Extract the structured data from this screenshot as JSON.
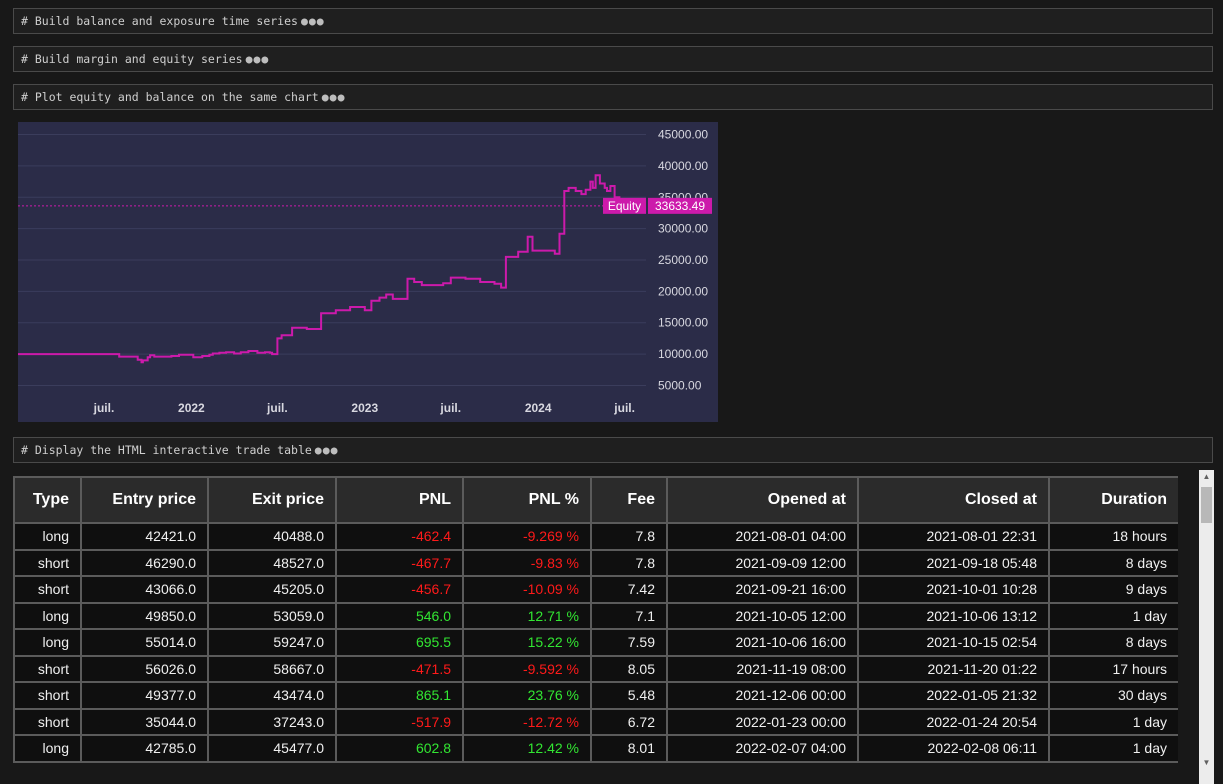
{
  "cells": [
    {
      "code": "# Build balance and exposure time series"
    },
    {
      "code": "# Build margin and equity series"
    },
    {
      "code": "# Plot equity and balance on the same chart"
    },
    {
      "code": "# Display the HTML interactive trade table"
    }
  ],
  "ellipsis": "●●●",
  "colors": {
    "chart_bg": "#2b2c48",
    "equity_line": "#cc1aab",
    "pnl_negative": "#ff1a1a",
    "pnl_positive": "#32e632"
  },
  "chart_data": {
    "type": "line",
    "title": "",
    "x_tick_labels": [
      "juil.",
      "2022",
      "juil.",
      "2023",
      "juil.",
      "2024",
      "juil."
    ],
    "x_ticks": [
      "2021-07-01",
      "2022-01-01",
      "2022-07-01",
      "2023-01-01",
      "2023-07-01",
      "2024-01-01",
      "2024-07-01"
    ],
    "xlim": [
      "2021-01-01",
      "2024-08-15"
    ],
    "y_tick_labels": [
      "5000.00",
      "10000.00",
      "15000.00",
      "20000.00",
      "25000.00",
      "30000.00",
      "35000.00",
      "40000.00",
      "45000.00"
    ],
    "ylim": [
      3000,
      47000
    ],
    "grid": true,
    "series": [
      {
        "name": "Equity",
        "last_value_label": "33633.49",
        "x": [
          "2021-01-01",
          "2021-08-01",
          "2021-08-02",
          "2021-09-10",
          "2021-09-18",
          "2021-09-21",
          "2021-10-01",
          "2021-10-06",
          "2021-10-15",
          "2021-11-20",
          "2021-12-06",
          "2022-01-05",
          "2022-01-24",
          "2022-02-08",
          "2022-02-15",
          "2022-03-01",
          "2022-03-15",
          "2022-04-01",
          "2022-04-15",
          "2022-05-01",
          "2022-05-20",
          "2022-06-05",
          "2022-06-15",
          "2022-06-20",
          "2022-07-01",
          "2022-07-10",
          "2022-08-01",
          "2022-08-20",
          "2022-09-01",
          "2022-10-01",
          "2022-11-01",
          "2022-12-01",
          "2023-01-01",
          "2023-01-15",
          "2023-02-01",
          "2023-02-15",
          "2023-03-01",
          "2023-04-01",
          "2023-04-15",
          "2023-05-01",
          "2023-05-15",
          "2023-06-01",
          "2023-06-15",
          "2023-07-01",
          "2023-08-01",
          "2023-09-01",
          "2023-10-01",
          "2023-10-15",
          "2023-10-25",
          "2023-11-01",
          "2023-11-20",
          "2023-12-10",
          "2023-12-20",
          "2024-01-01",
          "2024-01-25",
          "2024-02-05",
          "2024-02-15",
          "2024-02-25",
          "2024-03-05",
          "2024-03-20",
          "2024-04-01",
          "2024-04-10",
          "2024-04-20",
          "2024-04-25",
          "2024-05-01",
          "2024-05-10",
          "2024-05-20",
          "2024-05-25",
          "2024-06-01",
          "2024-06-10",
          "2024-06-20",
          "2024-06-25",
          "2024-07-01"
        ],
        "y": [
          10000,
          10000,
          9600,
          9100,
          8700,
          9000,
          9500,
          9800,
          9600,
          9700,
          9900,
          9500,
          9700,
          9900,
          10100,
          10200,
          10300,
          10100,
          10300,
          10500,
          10200,
          10300,
          10200,
          10000,
          12500,
          13000,
          14200,
          14200,
          14000,
          16500,
          17000,
          17500,
          17000,
          18500,
          19000,
          19500,
          18800,
          22000,
          21500,
          21000,
          21000,
          21000,
          21300,
          22200,
          22000,
          21500,
          21200,
          20600,
          25500,
          25500,
          26300,
          28700,
          26500,
          26500,
          26500,
          26000,
          29200,
          36000,
          36500,
          36000,
          35500,
          36200,
          37500,
          36500,
          38500,
          37200,
          36500,
          36000,
          36800,
          35000,
          34500,
          34000,
          33633
        ]
      }
    ],
    "axis_labels": [
      {
        "name": "Equity",
        "value": "33633.49"
      }
    ]
  },
  "table": {
    "headers": [
      "Type",
      "Entry price",
      "Exit price",
      "PNL",
      "PNL %",
      "Fee",
      "Opened at",
      "Closed at",
      "Duration"
    ],
    "rows": [
      {
        "type": "long",
        "entry": "42421.0",
        "exit": "40488.0",
        "pnl": "-462.4",
        "pnl_pct": "-9.269 %",
        "fee": "7.8",
        "opened": "2021-08-01 04:00",
        "closed": "2021-08-01 22:31",
        "duration": "18 hours",
        "positive": false
      },
      {
        "type": "short",
        "entry": "46290.0",
        "exit": "48527.0",
        "pnl": "-467.7",
        "pnl_pct": "-9.83 %",
        "fee": "7.8",
        "opened": "2021-09-09 12:00",
        "closed": "2021-09-18 05:48",
        "duration": "8 days",
        "positive": false
      },
      {
        "type": "short",
        "entry": "43066.0",
        "exit": "45205.0",
        "pnl": "-456.7",
        "pnl_pct": "-10.09 %",
        "fee": "7.42",
        "opened": "2021-09-21 16:00",
        "closed": "2021-10-01 10:28",
        "duration": "9 days",
        "positive": false
      },
      {
        "type": "long",
        "entry": "49850.0",
        "exit": "53059.0",
        "pnl": "546.0",
        "pnl_pct": "12.71 %",
        "fee": "7.1",
        "opened": "2021-10-05 12:00",
        "closed": "2021-10-06 13:12",
        "duration": "1 day",
        "positive": true
      },
      {
        "type": "long",
        "entry": "55014.0",
        "exit": "59247.0",
        "pnl": "695.5",
        "pnl_pct": "15.22 %",
        "fee": "7.59",
        "opened": "2021-10-06 16:00",
        "closed": "2021-10-15 02:54",
        "duration": "8 days",
        "positive": true
      },
      {
        "type": "short",
        "entry": "56026.0",
        "exit": "58667.0",
        "pnl": "-471.5",
        "pnl_pct": "-9.592 %",
        "fee": "8.05",
        "opened": "2021-11-19 08:00",
        "closed": "2021-11-20 01:22",
        "duration": "17 hours",
        "positive": false
      },
      {
        "type": "short",
        "entry": "49377.0",
        "exit": "43474.0",
        "pnl": "865.1",
        "pnl_pct": "23.76 %",
        "fee": "5.48",
        "opened": "2021-12-06 00:00",
        "closed": "2022-01-05 21:32",
        "duration": "30 days",
        "positive": true
      },
      {
        "type": "short",
        "entry": "35044.0",
        "exit": "37243.0",
        "pnl": "-517.9",
        "pnl_pct": "-12.72 %",
        "fee": "6.72",
        "opened": "2022-01-23 00:00",
        "closed": "2022-01-24 20:54",
        "duration": "1 day",
        "positive": false
      },
      {
        "type": "long",
        "entry": "42785.0",
        "exit": "45477.0",
        "pnl": "602.8",
        "pnl_pct": "12.42 %",
        "fee": "8.01",
        "opened": "2022-02-07 04:00",
        "closed": "2022-02-08 06:11",
        "duration": "1 day",
        "positive": true
      }
    ]
  }
}
